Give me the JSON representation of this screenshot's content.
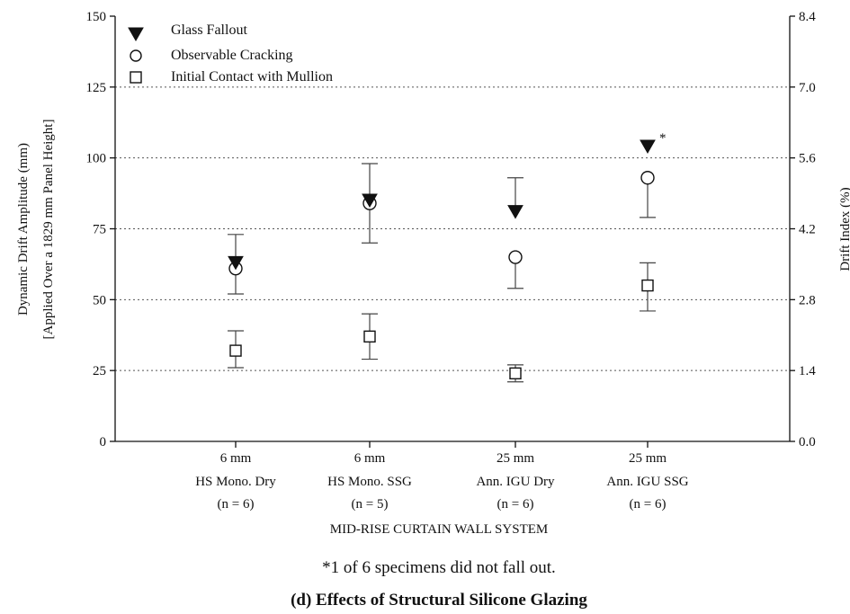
{
  "chart_data": {
    "type": "scatter",
    "categories": [
      {
        "line1": "6 mm",
        "line2": "HS Mono. Dry",
        "line3": "(n = 6)"
      },
      {
        "line1": "6 mm",
        "line2": "HS Mono. SSG",
        "line3": "(n = 5)"
      },
      {
        "line1": "25 mm",
        "line2": "Ann. IGU Dry",
        "line3": "(n = 6)"
      },
      {
        "line1": "25 mm",
        "line2": "Ann. IGU SSG",
        "line3": "(n = 6)"
      }
    ],
    "series": [
      {
        "name": "Glass Fallout",
        "marker": "filled-triangle-down",
        "values": [
          63,
          85,
          81,
          104
        ],
        "err_low": [
          null,
          null,
          null,
          null
        ],
        "err_high": [
          73,
          98,
          93,
          null
        ],
        "annotations": [
          null,
          null,
          null,
          "*"
        ]
      },
      {
        "name": "Observable Cracking",
        "marker": "open-circle",
        "values": [
          61,
          84,
          65,
          93
        ],
        "err_low": [
          52,
          70,
          54,
          79
        ],
        "err_high": [
          null,
          null,
          null,
          null
        ],
        "annotations": [
          null,
          null,
          null,
          null
        ]
      },
      {
        "name": "Initial Contact with Mullion",
        "marker": "open-square",
        "values": [
          32,
          37,
          24,
          55
        ],
        "err_low": [
          26,
          29,
          21,
          46
        ],
        "err_high": [
          39,
          45,
          27,
          63
        ],
        "annotations": [
          null,
          null,
          null,
          null
        ]
      }
    ],
    "xlabel": "MID-RISE CURTAIN WALL SYSTEM",
    "ylabel_line1": "Dynamic Drift Amplitude (mm)",
    "ylabel_line2": "[Applied Over a 1829 mm Panel Height]",
    "ylabel_right": "Drift Index (%)",
    "ylim": [
      0,
      150
    ],
    "yticks": [
      "0",
      "25",
      "50",
      "75",
      "100",
      "125",
      "150"
    ],
    "yticks_right": [
      "0.0",
      "1.4",
      "2.8",
      "4.2",
      "5.6",
      "7.0",
      "8.4"
    ],
    "ylim_right": [
      0.0,
      8.4
    ],
    "grid": "horizontal-dotted",
    "legend_placement": "top-left",
    "footnote": "*1 of 6 specimens did not fall out.",
    "caption": "(d) Effects of Structural Silicone Glazing"
  }
}
